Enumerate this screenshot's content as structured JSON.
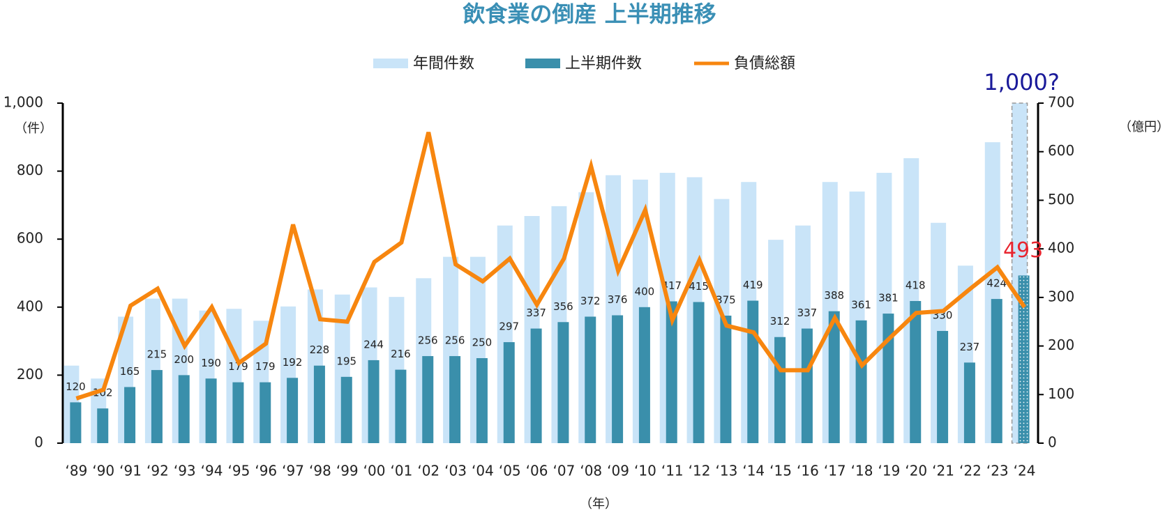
{
  "chart_data": {
    "type": "bar-line",
    "title": "飲食業の倒産 上半期推移",
    "y_unit": "（件）",
    "y2_unit": "（億円）",
    "x_label": "（年）",
    "categories": [
      "‘89",
      "‘90",
      "‘91",
      "‘92",
      "‘93",
      "‘94",
      "‘95",
      "‘96",
      "‘97",
      "‘98",
      "‘99",
      "‘00",
      "‘01",
      "‘02",
      "‘03",
      "‘04",
      "‘05",
      "‘06",
      "‘07",
      "‘08",
      "‘09",
      "‘10",
      "‘11",
      "‘12",
      "‘13",
      "‘14",
      "‘15",
      "‘16",
      "‘17",
      "‘18",
      "‘19",
      "‘20",
      "‘21",
      "‘22",
      "‘23",
      "‘24"
    ],
    "series": [
      {
        "name": "年間件数",
        "color": "#c9e4f8",
        "values": [
          228,
          190,
          372,
          425,
          425,
          390,
          395,
          360,
          402,
          452,
          437,
          458,
          430,
          485,
          548,
          548,
          640,
          668,
          697,
          738,
          788,
          775,
          795,
          782,
          718,
          768,
          598,
          640,
          768,
          740,
          795,
          838,
          648,
          522,
          885,
          1000
        ],
        "value_labels": [
          null,
          null,
          null,
          null,
          null,
          null,
          null,
          null,
          null,
          null,
          null,
          null,
          null,
          null,
          null,
          null,
          null,
          null,
          null,
          null,
          null,
          null,
          null,
          null,
          null,
          null,
          null,
          null,
          null,
          null,
          null,
          null,
          null,
          null,
          null,
          "1,000?"
        ]
      },
      {
        "name": "上半期件数",
        "color": "#3a8fab",
        "values": [
          120,
          102,
          165,
          215,
          200,
          190,
          179,
          179,
          192,
          228,
          195,
          244,
          216,
          256,
          256,
          250,
          297,
          337,
          356,
          372,
          376,
          400,
          417,
          415,
          375,
          419,
          312,
          337,
          388,
          361,
          381,
          418,
          330,
          237,
          424,
          493
        ]
      },
      {
        "name": "負債総額",
        "color": "#f7860f",
        "axis": "y2",
        "values": [
          92,
          110,
          283,
          318,
          200,
          280,
          165,
          205,
          450,
          255,
          250,
          373,
          413,
          640,
          368,
          333,
          380,
          285,
          380,
          570,
          355,
          480,
          253,
          377,
          242,
          228,
          150,
          150,
          258,
          160,
          215,
          268,
          272,
          318,
          362,
          280
        ]
      }
    ],
    "ylim": [
      0,
      1000
    ],
    "yticks": [
      0,
      200,
      400,
      600,
      800,
      {
        "value": 1000,
        "label": "1,000"
      }
    ],
    "y2lim": [
      0,
      700
    ],
    "y2ticks": [
      0,
      100,
      200,
      300,
      400,
      500,
      600,
      700
    ]
  }
}
